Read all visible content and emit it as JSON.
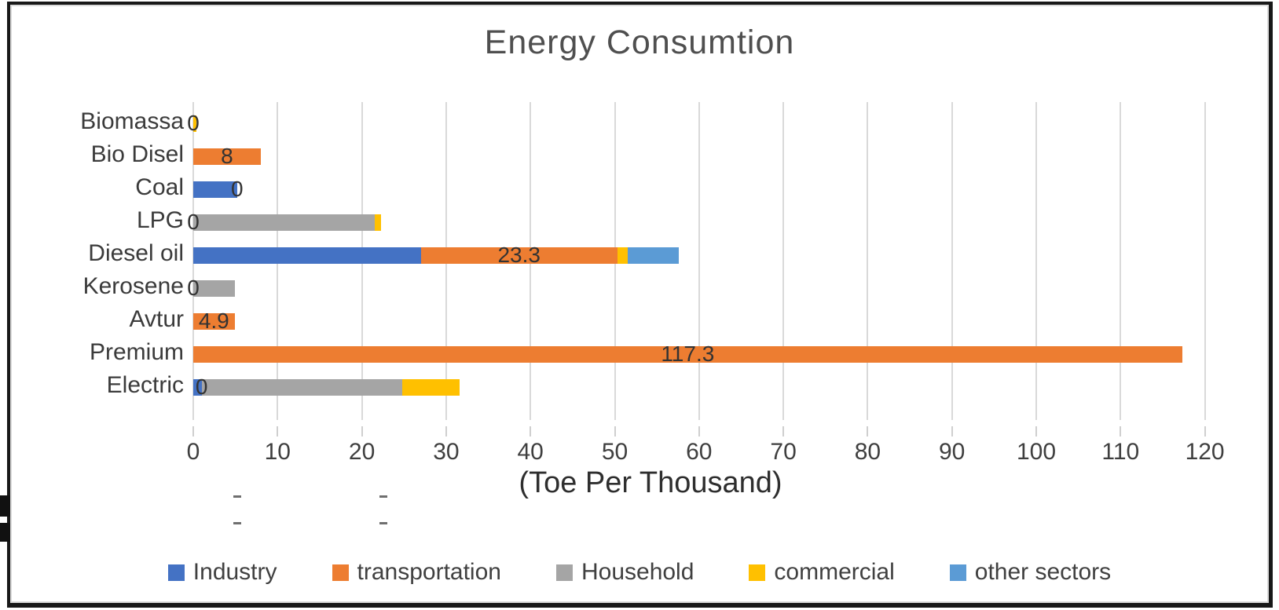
{
  "chart_data": {
    "type": "bar",
    "orientation": "horizontal",
    "stacked": true,
    "title": "Energy Consumtion",
    "xlabel": "(Toe Per Thousand)",
    "grid": true,
    "legend_position": "bottom",
    "xlim": [
      0,
      125
    ],
    "xticks": [
      0,
      10,
      20,
      30,
      40,
      50,
      60,
      70,
      80,
      90,
      100,
      110,
      120
    ],
    "categories": [
      "Biomassa",
      "Bio Disel",
      "Coal",
      "LPG",
      "Diesel oil",
      "Kerosene",
      "Avtur",
      "Premium",
      "Electric"
    ],
    "series": [
      {
        "name": "Industry",
        "color": "#4472C4",
        "values": [
          0,
          0,
          5.2,
          0,
          27,
          0,
          0,
          0,
          1
        ]
      },
      {
        "name": "transportation",
        "color": "#ED7D31",
        "values": [
          0,
          8,
          0,
          0,
          23.3,
          0,
          4.9,
          117.3,
          0
        ]
      },
      {
        "name": "Household",
        "color": "#A5A5A5",
        "values": [
          0,
          0,
          0,
          21.5,
          0,
          4.9,
          0,
          0,
          23.8
        ]
      },
      {
        "name": "commercial",
        "color": "#FFC000",
        "values": [
          0.4,
          0,
          0,
          0.8,
          1.2,
          0,
          0,
          0,
          6.8
        ]
      },
      {
        "name": "other sectors",
        "color": "#5B9BD5",
        "values": [
          0,
          0,
          0,
          0,
          6.1,
          0,
          0,
          0,
          0
        ]
      }
    ],
    "data_labels": [
      "0",
      "8",
      "0",
      "0",
      "23.3",
      "0",
      "4.9",
      "117.3",
      "0"
    ],
    "data_label_series": "transportation"
  },
  "legend": {
    "items": [
      {
        "label": "Industry",
        "color": "#4472C4"
      },
      {
        "label": "transportation",
        "color": "#ED7D31"
      },
      {
        "label": "Household",
        "color": "#A5A5A5"
      },
      {
        "label": "commercial",
        "color": "#FFC000"
      },
      {
        "label": "other sectors",
        "color": "#5B9BD5"
      }
    ]
  }
}
